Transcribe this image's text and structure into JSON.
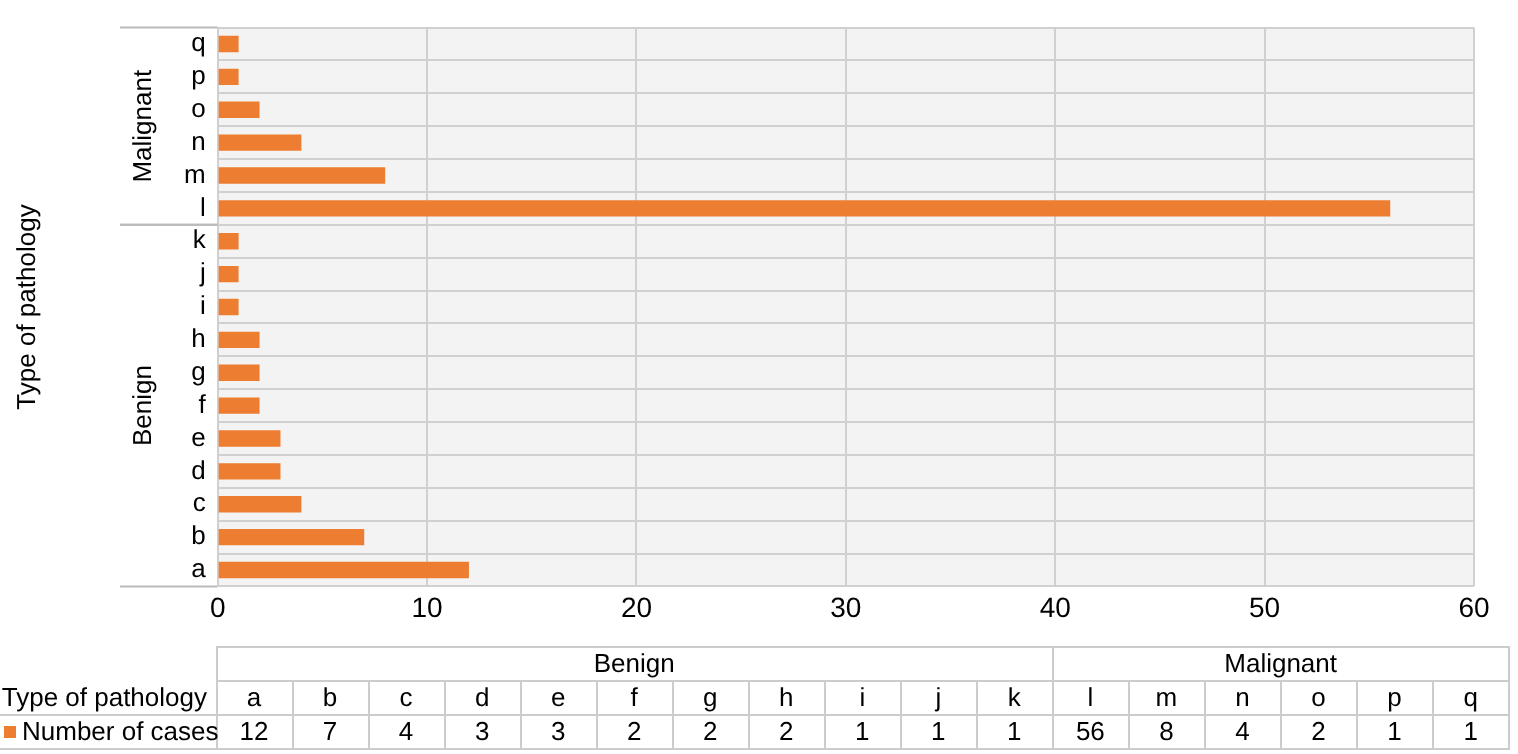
{
  "chart_data": [
    {
      "type": "bar",
      "orientation": "horizontal",
      "ylabel": "Type of pathology",
      "categories": [
        "q",
        "p",
        "o",
        "n",
        "m",
        "l",
        "k",
        "j",
        "i",
        "h",
        "g",
        "f",
        "e",
        "d",
        "c",
        "b",
        "a"
      ],
      "series": [
        {
          "color": "#ed7d31",
          "values": [
            1,
            1,
            2,
            4,
            8,
            56,
            1,
            1,
            1,
            2,
            2,
            2,
            3,
            3,
            4,
            7,
            12
          ]
        }
      ],
      "xlim": [
        0,
        60
      ],
      "xticks": [
        0,
        10,
        20,
        30,
        40,
        50,
        60
      ],
      "grid": true,
      "annotations": [
        "Malignant",
        "Benign"
      ]
    },
    {
      "type": "other",
      "xlabel": "Type of pathology",
      "categories": [
        "a",
        "b",
        "c",
        "d",
        "e",
        "f",
        "g",
        "h",
        "i",
        "j",
        "k",
        "l",
        "m",
        "n",
        "o",
        "p",
        "q"
      ],
      "series": [
        {
          "name": "Number of cases",
          "color": "#ed7d31",
          "values": [
            12,
            7,
            4,
            3,
            3,
            2,
            2,
            2,
            1,
            1,
            1,
            56,
            8,
            4,
            2,
            1,
            1
          ]
        }
      ],
      "legend": "bottom",
      "data_labels": true,
      "annotations": [
        "Benign",
        "Malignant"
      ]
    }
  ]
}
